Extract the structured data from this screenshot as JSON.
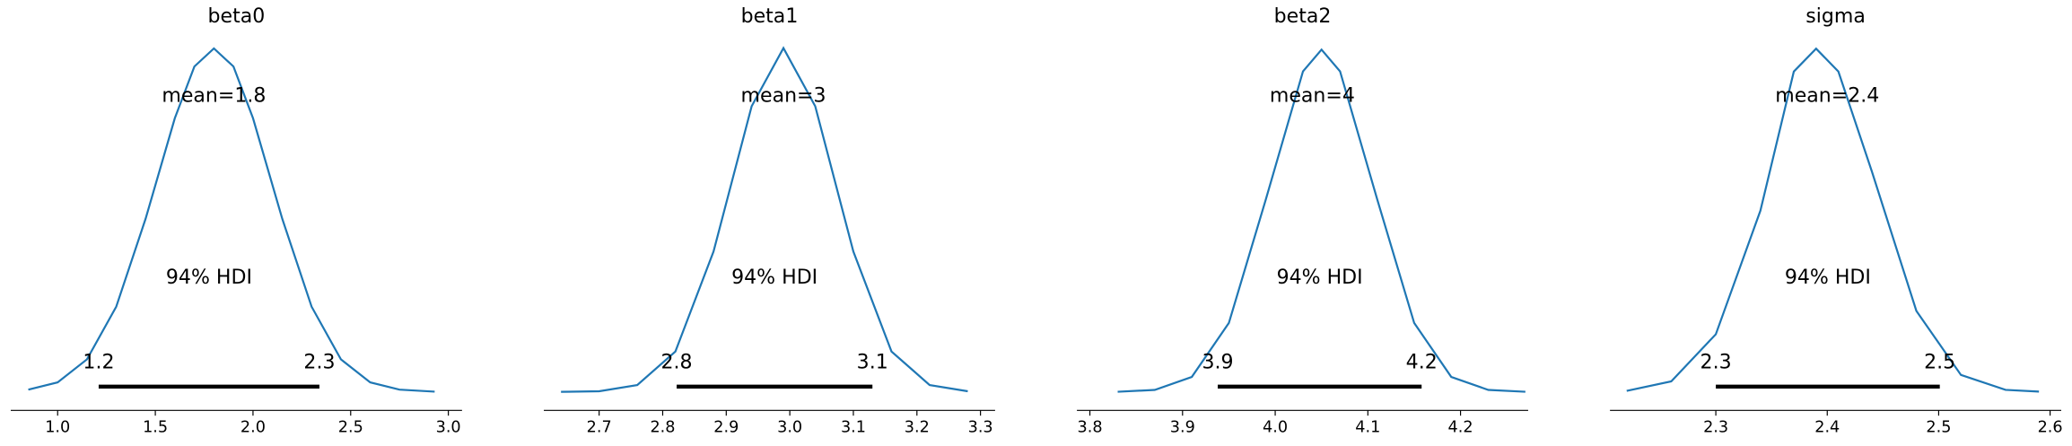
{
  "chart_data": [
    {
      "type": "density",
      "title": "beta0",
      "color": "#1f77b4",
      "x": [
        0.85,
        1.0,
        1.15,
        1.3,
        1.45,
        1.6,
        1.7,
        1.8,
        1.9,
        2.0,
        2.15,
        2.3,
        2.45,
        2.6,
        2.75,
        2.93
      ],
      "values": [
        0.0087,
        0.037,
        0.126,
        0.33,
        0.67,
        1.06,
        1.26,
        1.33,
        1.26,
        1.06,
        0.67,
        0.33,
        0.126,
        0.037,
        0.0087,
        0.001
      ],
      "xlim": [
        0.76,
        3.07
      ],
      "ylim": [
        0,
        1.4
      ],
      "xticks": [
        {
          "value": 1.0,
          "label": "1.0"
        },
        1.5,
        {
          "value": 2.0,
          "label": "2.0"
        },
        2.5,
        {
          "value": 3.0,
          "label": "3.0"
        }
      ],
      "mean": {
        "value": 1.8,
        "label": "mean=1.8"
      },
      "hdi_label": "94% HDI",
      "hdi": [
        {
          "value": 1.21,
          "label": "1.2"
        },
        {
          "value": 2.34,
          "label": "2.3"
        }
      ]
    },
    {
      "type": "density",
      "title": "beta1",
      "color": "#1f77b4",
      "x": [
        2.64,
        2.7,
        2.76,
        2.82,
        2.88,
        2.94,
        2.99,
        3.04,
        3.1,
        3.16,
        3.22,
        3.28
      ],
      "values": [
        0.001,
        0.009,
        0.097,
        0.57,
        1.98,
        4.03,
        4.85,
        4.03,
        1.98,
        0.57,
        0.097,
        0.009
      ],
      "xlim": [
        2.613,
        3.323
      ],
      "ylim": [
        0,
        5.1
      ],
      "xticks": [
        2.7,
        2.8,
        2.9,
        {
          "value": 3.0,
          "label": "3.0"
        },
        3.1,
        3.2,
        3.3
      ],
      "mean": {
        "value": 2.99,
        "label": "mean=3"
      },
      "hdi_label": "94% HDI",
      "hdi": [
        {
          "value": 2.822,
          "label": "2.8"
        },
        {
          "value": 3.13,
          "label": "3.1"
        }
      ]
    },
    {
      "type": "density",
      "title": "beta2",
      "color": "#1f77b4",
      "x": [
        3.83,
        3.87,
        3.91,
        3.95,
        3.99,
        4.03,
        4.05,
        4.07,
        4.11,
        4.15,
        4.19,
        4.23,
        4.27
      ],
      "values": [
        0.003,
        0.041,
        0.31,
        1.43,
        4.0,
        6.65,
        7.1,
        6.65,
        4.0,
        1.43,
        0.31,
        0.041,
        0.003
      ],
      "xlim": [
        3.786,
        4.273
      ],
      "ylim": [
        0,
        7.5
      ],
      "xticks": [
        3.8,
        3.9,
        {
          "value": 4.0,
          "label": "4.0"
        },
        4.1,
        4.2
      ],
      "mean": {
        "value": 4.04,
        "label": "mean=4"
      },
      "hdi_label": "94% HDI",
      "hdi": [
        {
          "value": 3.938,
          "label": "3.9"
        },
        {
          "value": 4.158,
          "label": "4.2"
        }
      ]
    },
    {
      "type": "density",
      "title": "sigma",
      "color": "#1f77b4",
      "x": [
        2.22,
        2.26,
        2.3,
        2.34,
        2.37,
        2.39,
        2.41,
        2.44,
        2.48,
        2.52,
        2.56,
        2.59
      ],
      "values": [
        0.023,
        0.23,
        1.26,
        3.96,
        7.0,
        7.5,
        7.0,
        4.82,
        1.77,
        0.37,
        0.044,
        0.006
      ],
      "xlim": [
        2.205,
        2.61
      ],
      "ylim": [
        0,
        7.9
      ],
      "xticks": [
        2.3,
        2.4,
        2.5,
        2.6
      ],
      "mean": {
        "value": 2.4,
        "label": "mean=2.4"
      },
      "hdi_label": "94% HDI",
      "hdi": [
        {
          "value": 2.3,
          "label": "2.3"
        },
        {
          "value": 2.501,
          "label": "2.5"
        }
      ]
    }
  ]
}
